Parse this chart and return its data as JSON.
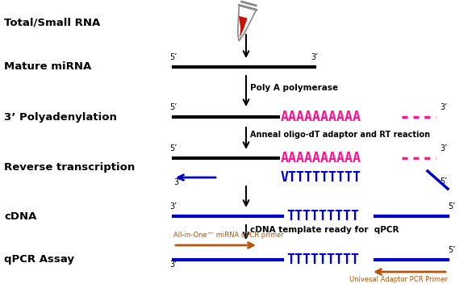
{
  "background_color": "#ffffff",
  "colors": {
    "black": "#000000",
    "blue": "#0000cc",
    "pink": "#ff1493",
    "orange": "#b8540a",
    "gray": "#888888"
  },
  "labels": {
    "total_rna": "Total/Small RNA",
    "mature_mirna": "Mature miRNA",
    "poly_a": "3’ Polyadenylation",
    "reverse_trans": "Reverse transcription",
    "cdna": "cDNA",
    "qpcr": "qPCR Assay"
  },
  "step_labels": {
    "poly_a_polymerase": "Poly A polymerase",
    "anneal_oligo": "Anneal oligo-dT adaptor and RT reaction",
    "cdna_template": "cDNA template ready for  qPCR",
    "all_in_one": "All-in-One™ miRNA qPCR primer",
    "universal": "Univesal Adaptor PCR Primer"
  }
}
